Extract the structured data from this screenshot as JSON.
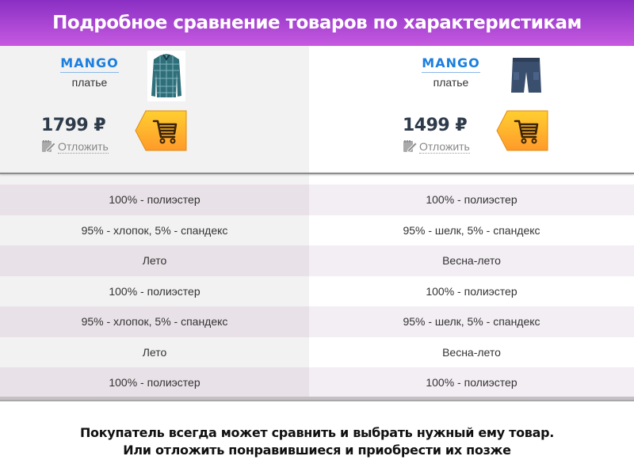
{
  "header": {
    "title": "Подробное сравнение товаров по характеристикам"
  },
  "products": [
    {
      "brand": "MANGO",
      "type": "платье",
      "image": "plaid-shirt",
      "price": "1799 ₽",
      "defer_label": "Отложить",
      "cart_icon": "cart-icon"
    },
    {
      "brand": "MANGO",
      "type": "платье",
      "image": "denim-shorts",
      "price": "1499 ₽",
      "defer_label": "Отложить",
      "cart_icon": "cart-icon"
    }
  ],
  "rows": [
    [
      "100% - полиэстер",
      "100% - полиэстер"
    ],
    [
      "95% - хлопок, 5% - спандекс",
      "95% - шелк, 5% - спандекс"
    ],
    [
      "Лето",
      "Весна-лето"
    ],
    [
      "100% - полиэстер",
      "100% - полиэстер"
    ],
    [
      "95% - хлопок, 5% - спандекс",
      "95% - шелк, 5% - спандекс"
    ],
    [
      "Лето",
      "Весна-лето"
    ],
    [
      "100% - полиэстер",
      "100% - полиэстер"
    ]
  ],
  "footer": {
    "line1": "Покупатель всегда может сравнить и выбрать нужный ему товар.",
    "line2": "Или отложить понравившиеся и приобрести их позже"
  },
  "colors": {
    "header_top": "#8a2fc4",
    "header_bottom": "#c65ae0",
    "brand": "#1a7fe0",
    "cart": "#ffb12a"
  }
}
